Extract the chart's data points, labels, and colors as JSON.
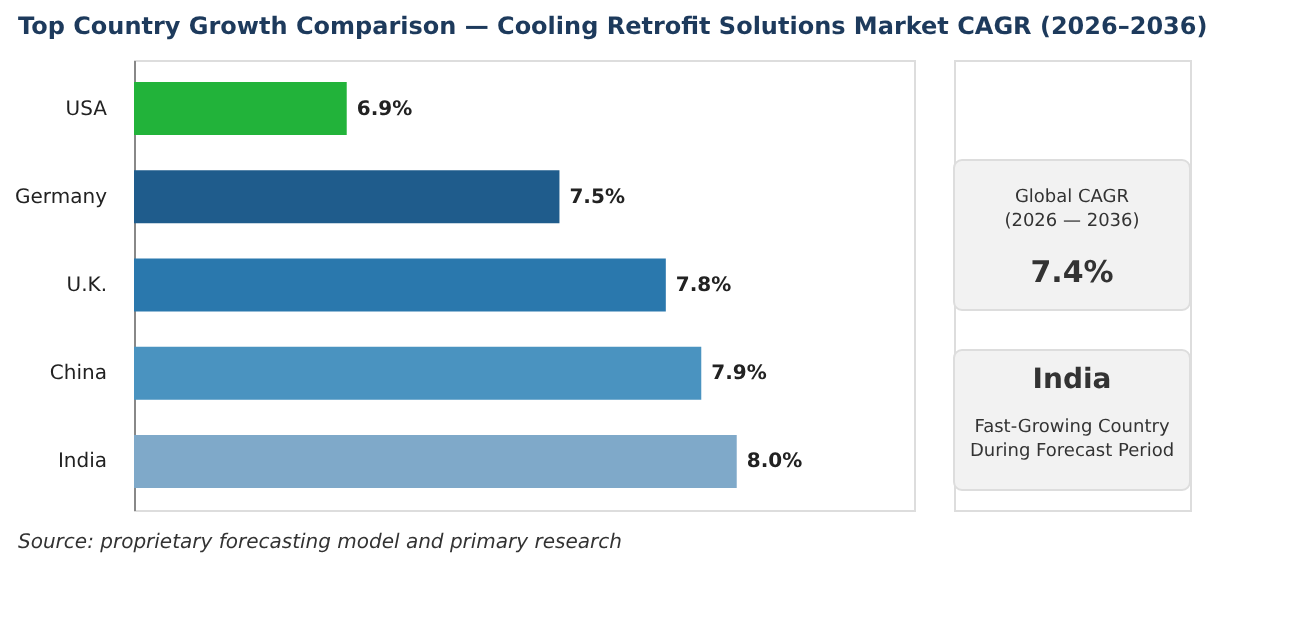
{
  "chart_data": [
    {
      "type": "bar",
      "orientation": "horizontal",
      "title": "Top Country Growth Comparison — Cooling Retrofit Solutions Market CAGR (2026–2036)",
      "categories": [
        "USA",
        "Germany",
        "U.K.",
        "China",
        "India"
      ],
      "values": [
        6.9,
        7.5,
        7.8,
        7.9,
        8.0
      ],
      "colors": [
        "#22b33a",
        "#1f5c8c",
        "#2a78ad",
        "#4a93c0",
        "#7fa9c9"
      ],
      "value_labels": [
        "6.9%",
        "7.5%",
        "7.8%",
        "7.9%",
        "8.0%"
      ],
      "xlim": [
        6.3,
        8.5
      ],
      "grid": false,
      "legend": false,
      "annotations": [
        "Source: proprietary forecasting model and primary research"
      ]
    },
    {
      "type": "other",
      "annotations": [
        "Global CAGR\n(2026 — 2036)",
        "7.4%",
        "India",
        "Fast-Growing Country\nDuring Forecast Period"
      ]
    }
  ]
}
